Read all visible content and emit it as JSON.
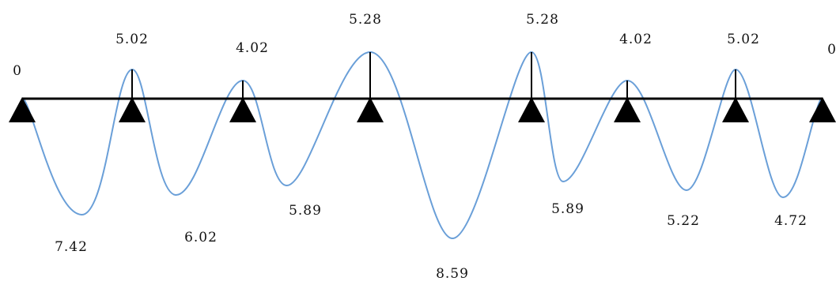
{
  "diagram": {
    "type": "continuous-beam-moment-diagram",
    "colors": {
      "beam": "#000000",
      "curve": "#6a9fd8",
      "support": "#000000",
      "text": "#111111"
    },
    "support_moments": [
      "0",
      "5.02",
      "4.02",
      "5.28",
      "5.28",
      "4.02",
      "5.02",
      "0"
    ],
    "span_moments": [
      "7.42",
      "6.02",
      "5.89",
      "8.59",
      "5.89",
      "5.22",
      "4.72"
    ]
  }
}
